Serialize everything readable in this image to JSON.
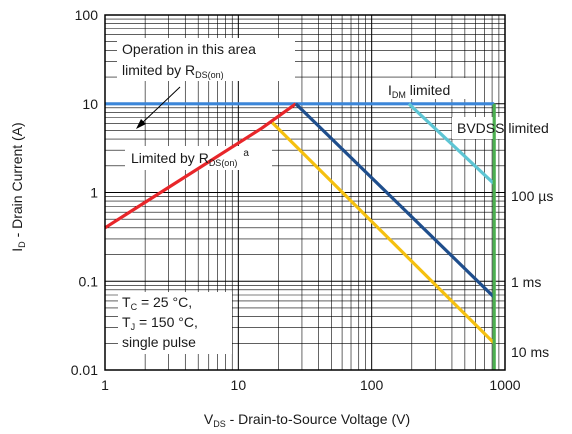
{
  "chart_data": {
    "type": "line",
    "x_scale": "log",
    "y_scale": "log",
    "xlim": [
      1,
      1000
    ],
    "ylim": [
      0.01,
      100
    ],
    "grid": true,
    "xlabel": {
      "main": "V",
      "sub": "DS",
      "rest": " - Drain-to-Source Voltage (V)"
    },
    "ylabel": {
      "main": "I",
      "sub": "D",
      "rest": " - Drain Current (A)"
    },
    "x_ticks": [
      {
        "value": 1,
        "label": "1"
      },
      {
        "value": 10,
        "label": "10"
      },
      {
        "value": 100,
        "label": "100"
      },
      {
        "value": 1000,
        "label": "1000"
      }
    ],
    "y_ticks": [
      {
        "value": 0.01,
        "label": "0.01"
      },
      {
        "value": 0.1,
        "label": "0.1"
      },
      {
        "value": 1,
        "label": "1"
      },
      {
        "value": 10,
        "label": "10"
      },
      {
        "value": 100,
        "label": "100"
      }
    ],
    "series": [
      {
        "name": "IDM limited",
        "color": "#3b86d9",
        "x": [
          1,
          830
        ],
        "y": [
          10,
          10
        ]
      },
      {
        "name": "Limited by RDS(on)",
        "color": "#e8262a",
        "x": [
          1,
          15,
          27
        ],
        "y": [
          0.4,
          5.3,
          10
        ]
      },
      {
        "name": "100 µs",
        "color": "#5ec5d4",
        "x": [
          190,
          830
        ],
        "y": [
          10,
          1.25
        ]
      },
      {
        "name": "1 ms",
        "color": "#1f4e8c",
        "x": [
          27,
          830
        ],
        "y": [
          10,
          0.066
        ]
      },
      {
        "name": "10 ms",
        "color": "#f5c010",
        "x": [
          18,
          830
        ],
        "y": [
          6.1,
          0.02
        ]
      },
      {
        "name": "BVDSS limited",
        "color": "#4caf50",
        "x": [
          830,
          830
        ],
        "y": [
          0.01,
          10
        ]
      }
    ],
    "annotations": {
      "operation_line1": "Operation in this area",
      "operation_line2": "limited by R",
      "operation_sub": "DS(on)",
      "idm_main": "I",
      "idm_sub": "DM",
      "idm_rest": " limited",
      "bvdss": "BVDSS limited",
      "rds_main": "Limited by R",
      "rds_sub": "DS(on)",
      "rds_sup": "a",
      "label_100us": "100 µs",
      "label_1ms": "1 ms",
      "label_10ms": "10 ms",
      "cond_tc_main": "T",
      "cond_tc_sub": "C",
      "cond_tc_rest": " = 25 °C,",
      "cond_tj_main": "T",
      "cond_tj_sub": "J",
      "cond_tj_rest": " = 150 °C,",
      "cond_pulse": "single pulse"
    }
  }
}
